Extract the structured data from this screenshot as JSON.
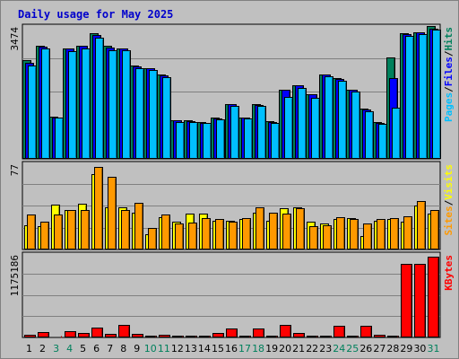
{
  "chart_data": {
    "type": "bar",
    "title": "Daily usage for May 2025",
    "categories": [
      "1",
      "2",
      "3",
      "4",
      "5",
      "6",
      "7",
      "8",
      "9",
      "10",
      "11",
      "12",
      "13",
      "14",
      "15",
      "16",
      "17",
      "18",
      "19",
      "20",
      "21",
      "22",
      "23",
      "24",
      "25",
      "26",
      "27",
      "28",
      "29",
      "30",
      "31"
    ],
    "weekend_days": [
      "3",
      "4",
      "10",
      "11",
      "17",
      "18",
      "24",
      "25",
      "31"
    ],
    "panels": [
      {
        "id": "hits",
        "max_label": "3474",
        "ylim": [
          0,
          3474
        ],
        "grid": true,
        "legend": [
          "Pages",
          "/",
          "Files",
          "/",
          "Hits"
        ],
        "series": [
          {
            "name": "Hits",
            "color": "#00805c",
            "values": [
              2590,
              2960,
              1100,
              2890,
              2960,
              3280,
              2960,
              2880,
              2440,
              2370,
              2200,
              1000,
              1000,
              960,
              1070,
              1440,
              1090,
              1440,
              980,
              1810,
              1930,
              1700,
              2210,
              2120,
              1810,
              1310,
              960,
              2650,
              3280,
              3300,
              3474
            ]
          },
          {
            "name": "Files",
            "color": "#0000ff",
            "values": [
              2520,
              2940,
              1090,
              2880,
              2960,
              3230,
              2900,
              2880,
              2410,
              2360,
              2190,
              1000,
              990,
              950,
              1050,
              1430,
              1080,
              1420,
              960,
              1800,
              1930,
              1700,
              2210,
              2100,
              1800,
              1300,
              950,
              2120,
              3260,
              3300,
              3410
            ]
          },
          {
            "name": "Pages",
            "color": "#00bfff",
            "values": [
              2450,
              2890,
              1070,
              2820,
              2890,
              3170,
              2830,
              2830,
              2360,
              2330,
              2140,
              970,
              970,
              940,
              1040,
              1390,
              1050,
              1390,
              950,
              1620,
              1860,
              1600,
              2160,
              2050,
              1760,
              1250,
              910,
              1340,
              3220,
              3260,
              3370
            ]
          }
        ]
      },
      {
        "id": "visits",
        "max_label": "77",
        "ylim": [
          0,
          77
        ],
        "grid": true,
        "legend": [
          "Sites",
          "/",
          "Visits"
        ],
        "series": [
          {
            "name": "Visits",
            "color": "#ffff00",
            "values": [
              22,
              21,
              40,
              35,
              41,
              67,
              38,
              38,
              33,
              14,
              29,
              25,
              32,
              32,
              26,
              26,
              27,
              33,
              26,
              37,
              38,
              25,
              23,
              27,
              28,
              12,
              26,
              27,
              25,
              39,
              32
            ]
          },
          {
            "name": "Sites",
            "color": "#ff9900",
            "values": [
              31,
              25,
              31,
              35,
              35,
              74,
              65,
              35,
              42,
              19,
              31,
              23,
              24,
              28,
              27,
              25,
              28,
              38,
              33,
              32,
              37,
              21,
              22,
              29,
              27,
              23,
              27,
              28,
              30,
              43,
              35
            ]
          }
        ]
      },
      {
        "id": "kbytes",
        "max_label": "1175186",
        "ylim": [
          0,
          1175186
        ],
        "grid": true,
        "legend": [
          "KBytes"
        ],
        "series": [
          {
            "name": "KBytes",
            "color": "#ff0000",
            "values": [
              40000,
              70000,
              10000,
              90000,
              60000,
              140000,
              50000,
              180000,
              50000,
              30000,
              40000,
              30000,
              30000,
              30000,
              60000,
              130000,
              30000,
              130000,
              30000,
              180000,
              60000,
              30000,
              30000,
              170000,
              30000,
              170000,
              40000,
              30000,
              1030000,
              1030000,
              1140000
            ]
          }
        ]
      }
    ]
  }
}
